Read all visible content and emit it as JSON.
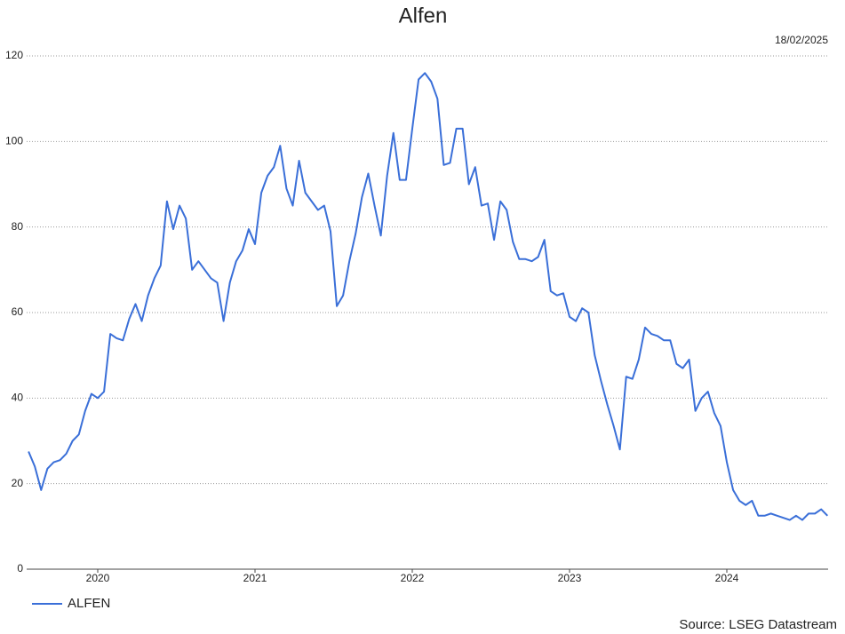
{
  "chart_data": {
    "type": "line",
    "title": "Alfen",
    "date": "18/02/2025",
    "source": "Source: LSEG Datastream",
    "x": [
      2019.56,
      2019.6,
      2019.64,
      2019.68,
      2019.72,
      2019.76,
      2019.8,
      2019.84,
      2019.88,
      2019.92,
      2019.96,
      2020.0,
      2020.04,
      2020.08,
      2020.12,
      2020.16,
      2020.2,
      2020.24,
      2020.28,
      2020.32,
      2020.36,
      2020.4,
      2020.44,
      2020.48,
      2020.52,
      2020.56,
      2020.6,
      2020.64,
      2020.68,
      2020.72,
      2020.76,
      2020.8,
      2020.84,
      2020.88,
      2020.92,
      2020.96,
      2021.0,
      2021.04,
      2021.08,
      2021.12,
      2021.16,
      2021.2,
      2021.24,
      2021.28,
      2021.32,
      2021.36,
      2021.4,
      2021.44,
      2021.48,
      2021.52,
      2021.56,
      2021.6,
      2021.64,
      2021.68,
      2021.72,
      2021.76,
      2021.8,
      2021.84,
      2021.88,
      2021.92,
      2021.96,
      2022.0,
      2022.04,
      2022.08,
      2022.12,
      2022.16,
      2022.2,
      2022.24,
      2022.28,
      2022.32,
      2022.36,
      2022.4,
      2022.44,
      2022.48,
      2022.52,
      2022.56,
      2022.6,
      2022.64,
      2022.68,
      2022.72,
      2022.76,
      2022.8,
      2022.84,
      2022.88,
      2022.92,
      2022.96,
      2023.0,
      2023.04,
      2023.08,
      2023.12,
      2023.16,
      2023.2,
      2023.24,
      2023.28,
      2023.32,
      2023.36,
      2023.4,
      2023.44,
      2023.48,
      2023.52,
      2023.56,
      2023.6,
      2023.64,
      2023.68,
      2023.72,
      2023.76,
      2023.8,
      2023.84,
      2023.88,
      2023.92,
      2023.96,
      2024.0,
      2024.04,
      2024.08,
      2024.12,
      2024.16,
      2024.2,
      2024.24,
      2024.28,
      2024.32,
      2024.36,
      2024.4,
      2024.44,
      2024.48,
      2024.52,
      2024.56,
      2024.6,
      2024.64
    ],
    "series": [
      {
        "name": "ALFEN",
        "color": "#3a6fd8",
        "values": [
          27.5,
          24,
          18.5,
          23.5,
          25,
          25.5,
          27,
          30,
          31.5,
          37,
          41,
          40,
          41.5,
          55,
          54,
          53.5,
          58.5,
          62,
          58,
          64,
          68,
          71,
          86,
          79.5,
          85,
          82,
          70,
          72,
          70,
          68,
          67,
          58,
          67,
          72,
          74.5,
          79.5,
          76,
          88,
          92,
          94,
          99,
          89,
          85,
          95.5,
          88,
          86,
          84,
          85,
          79,
          61.5,
          64,
          72,
          78.5,
          87,
          92.5,
          85,
          78,
          92,
          102,
          91,
          91,
          103,
          114.5,
          116,
          114,
          110,
          94.5,
          95,
          103,
          103,
          90,
          94,
          85,
          85.5,
          77,
          86,
          84,
          76.5,
          72.5,
          72.5,
          72,
          73,
          77,
          65,
          64,
          64.5,
          59,
          58,
          61,
          60,
          50,
          44,
          38.5,
          33.5,
          28,
          45,
          44.5,
          49,
          56.5,
          55,
          54.5,
          53.5,
          53.5,
          48,
          47,
          49,
          37,
          40,
          41.5,
          36.5,
          33.5,
          25,
          18.5,
          16,
          15,
          16,
          12.5,
          12.5,
          13,
          12.5,
          12,
          11.5,
          12.5,
          11.5,
          13,
          13,
          14,
          12.5
        ]
      }
    ],
    "xlim": [
      2019.548,
      2024.644
    ],
    "xticks": [
      2020,
      2021,
      2022,
      2023,
      2024
    ],
    "ylim": [
      0,
      120
    ],
    "yticks": [
      0,
      20,
      40,
      60,
      80,
      100,
      120
    ],
    "grid": true,
    "legend": "bottom-left"
  }
}
